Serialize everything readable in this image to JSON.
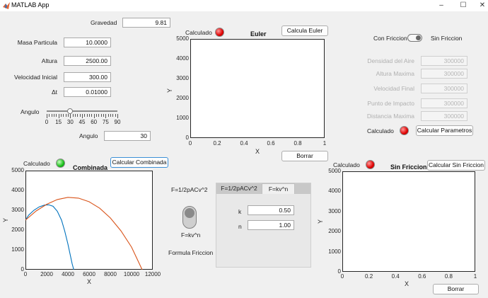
{
  "window": {
    "title": "MATLAB App",
    "minimize": "–",
    "maximize": "☐",
    "close": "✕"
  },
  "gravity": {
    "label": "Gravedad",
    "value": "9.81"
  },
  "inputs": {
    "mass": {
      "label": "Masa Particula",
      "value": "10.0000"
    },
    "height": {
      "label": "Altura",
      "value": "2500.00"
    },
    "velocity": {
      "label": "Velocidad Inicial",
      "value": "300.00"
    },
    "dt": {
      "label": "Δt",
      "value": "0.01000"
    }
  },
  "angle": {
    "slider_label": "Angulo",
    "ticks": [
      "0",
      "15",
      "30",
      "45",
      "60",
      "75",
      "90"
    ],
    "slider_value": 30,
    "slider_max": 90,
    "field_label": "Angulo",
    "field_value": "30"
  },
  "euler": {
    "lamp_label": "Calculado",
    "lamp_color": "#e00000",
    "button": "Calcula Euler",
    "title": "Euler",
    "yticks": [
      "5000",
      "4000",
      "3000",
      "2000",
      "1000",
      "0"
    ],
    "xticks": [
      "0",
      "0.2",
      "0.4",
      "0.6",
      "0.8",
      "1"
    ],
    "xlabel": "X",
    "ylabel": "Y",
    "clear_button": "Borrar"
  },
  "friction": {
    "switch_left": "Con Friccion",
    "switch_right": "Sin Friccion",
    "params": [
      {
        "label": "Densidad del Aire",
        "value": "300000"
      },
      {
        "label": "Altura Maxima",
        "value": "300000"
      },
      {
        "label": "Velocidad Final",
        "value": "300000"
      },
      {
        "label": "Punto de Impacto",
        "value": "300000"
      },
      {
        "label": "Distancia Maxima",
        "value": "300000"
      }
    ],
    "lamp_label": "Calculado",
    "lamp_color": "#e00000",
    "button": "Calcular Parametros"
  },
  "combined": {
    "lamp_label": "Calculado",
    "lamp_color": "#19c019",
    "title": "Combinada",
    "button": "Calcular Combinada",
    "yticks": [
      "5000",
      "4000",
      "3000",
      "2000",
      "1000",
      "0"
    ],
    "xticks": [
      "0",
      "2000",
      "4000",
      "6000",
      "8000",
      "10000",
      "12000"
    ],
    "xlabel": "X",
    "ylabel": "Y"
  },
  "formula": {
    "top_label": "F=1/2pACv^2",
    "bottom_label": "F=kv^n",
    "caption": "Formula Friccion",
    "tabs": [
      "F=1/2pACv^2",
      "F=kv^n"
    ],
    "k": {
      "label": "k",
      "value": "0.50"
    },
    "n": {
      "label": "n",
      "value": "1.00"
    }
  },
  "nofriction": {
    "lamp_label": "Calculado",
    "lamp_color": "#e00000",
    "title": "Sin Friccion",
    "button": "Calcular Sin Friccion",
    "yticks": [
      "5000",
      "4000",
      "3000",
      "2000",
      "1000",
      "0"
    ],
    "xticks": [
      "0",
      "0.2",
      "0.4",
      "0.6",
      "0.8",
      "1"
    ],
    "xlabel": "X",
    "ylabel": "Y",
    "clear_button": "Borrar"
  },
  "chart_data": {
    "type": "line",
    "title": "Combinada",
    "xlabel": "X",
    "ylabel": "Y",
    "xlim": [
      0,
      12000
    ],
    "ylim": [
      0,
      5000
    ],
    "series": [
      {
        "color": "#0072bd",
        "x": [
          0,
          300,
          800,
          1300,
          1800,
          2200,
          2600,
          3000,
          3400,
          3700,
          4000,
          4200,
          4400,
          4550
        ],
        "y": [
          2500,
          2750,
          3000,
          3170,
          3260,
          3270,
          3200,
          2950,
          2500,
          1950,
          1300,
          800,
          300,
          0
        ]
      },
      {
        "color": "#d95319",
        "x": [
          0,
          1000,
          2000,
          3000,
          4000,
          5000,
          6000,
          7000,
          8000,
          9000,
          10000,
          11000
        ],
        "y": [
          2500,
          2960,
          3300,
          3540,
          3650,
          3610,
          3430,
          3100,
          2610,
          1960,
          1140,
          0
        ]
      }
    ]
  }
}
